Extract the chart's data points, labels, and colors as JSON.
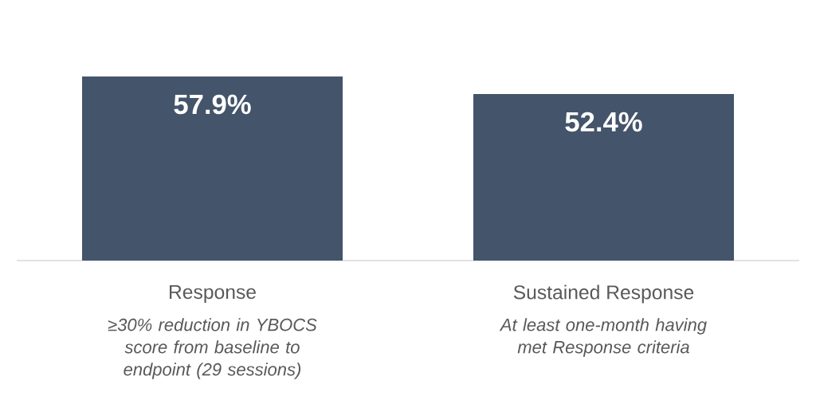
{
  "chart_data": {
    "type": "bar",
    "categories": [
      "Response",
      "Sustained Response"
    ],
    "values": [
      57.9,
      52.4
    ],
    "value_labels": [
      "57.9%",
      "52.4%"
    ],
    "color": "#44546a",
    "annotations": [
      "≥30% reduction in YBOCS score from baseline to endpoint (29 sessions)",
      "At least one-month having met Response criteria"
    ]
  }
}
